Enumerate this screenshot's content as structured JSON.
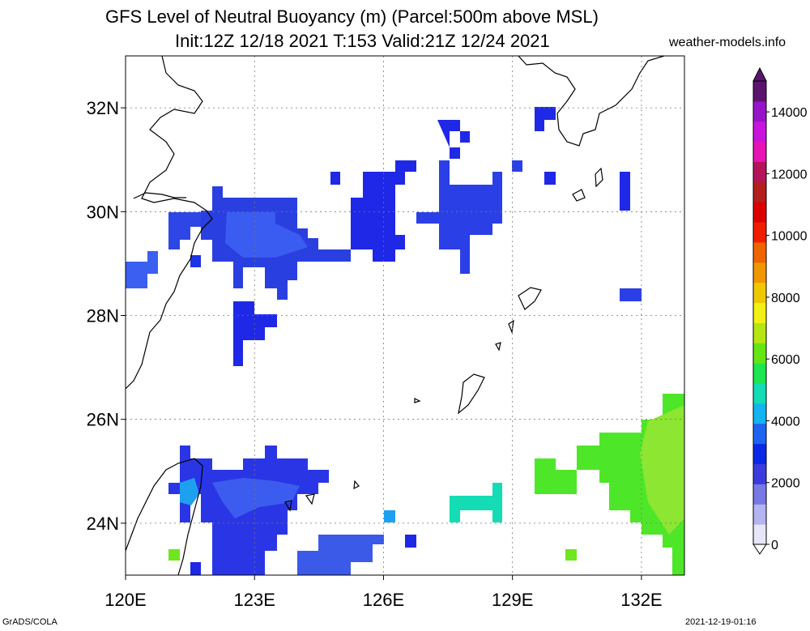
{
  "title": {
    "line1": "GFS Level of Neutral Buoyancy (m) (Parcel:500m above MSL)",
    "line2": "Init:12Z 12/18 2021 T:153 Valid:21Z 12/24 2021",
    "site": "weather-models.info"
  },
  "map": {
    "lon_range": [
      120,
      133
    ],
    "lat_range": [
      23,
      33
    ],
    "lat_labels": [
      "32N",
      "30N",
      "28N",
      "26N",
      "24N"
    ],
    "lat_values": [
      32,
      30,
      28,
      26,
      24
    ],
    "lon_labels": [
      "120E",
      "123E",
      "126E",
      "129E",
      "132E"
    ],
    "lon_values": [
      120,
      123,
      126,
      129,
      132
    ],
    "grid_line_style": "dotted",
    "coastline_color": "#000000"
  },
  "colorbar": {
    "ticks": [
      "0",
      "2000",
      "4000",
      "6000",
      "8000",
      "10000",
      "12000",
      "14000"
    ],
    "tick_values": [
      0,
      2000,
      4000,
      6000,
      8000,
      10000,
      12000,
      14000
    ],
    "range": [
      0,
      15000
    ],
    "colors": [
      "#e6e6fa",
      "#b4b4f0",
      "#7878e6",
      "#3c3cdc",
      "#0a28e6",
      "#1e64f0",
      "#14b4f0",
      "#14dcb4",
      "#1ee650",
      "#64e614",
      "#b4e614",
      "#f0f014",
      "#f0c800",
      "#f09600",
      "#f06400",
      "#f01e00",
      "#dc0000",
      "#b41e1e",
      "#b4145a",
      "#e614b4",
      "#c814dc",
      "#9614c8",
      "#5a146e"
    ]
  },
  "footer": {
    "left": "GrADS/COLA",
    "right": "2021-12-19-01:16"
  }
}
